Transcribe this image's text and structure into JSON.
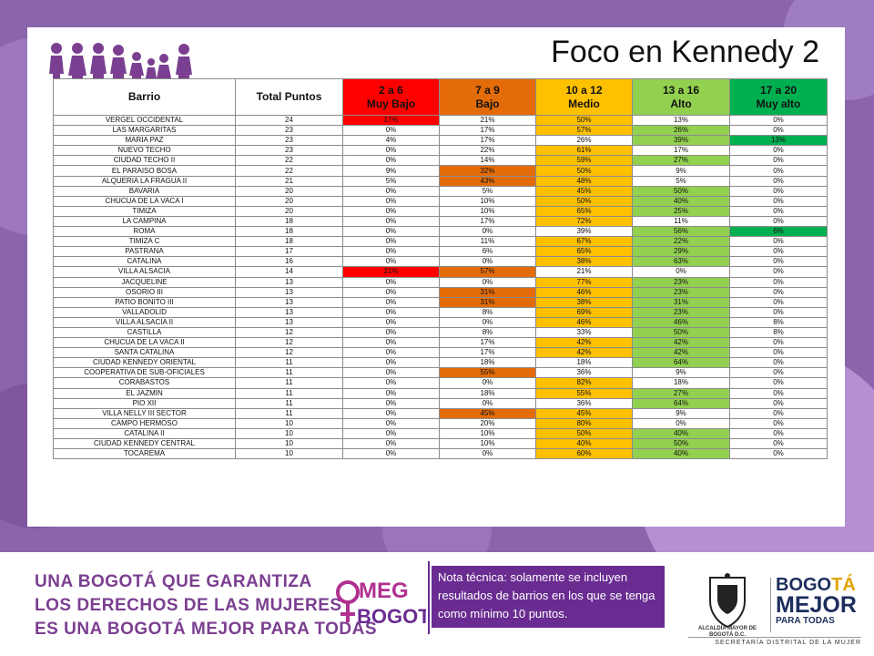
{
  "title": "Foco en Kennedy 2",
  "table": {
    "header": {
      "barrio": "Barrio",
      "total": "Total Puntos",
      "levels": [
        {
          "range": "2 a 6",
          "label": "Muy Bajo",
          "color": "#ff0000"
        },
        {
          "range": "7 a 9",
          "label": "Bajo",
          "color": "#e36c09"
        },
        {
          "range": "10 a 12",
          "label": "Medio",
          "color": "#ffc000"
        },
        {
          "range": "13 a 16",
          "label": "Alto",
          "color": "#92d050"
        },
        {
          "range": "17 a 20",
          "label": "Muy alto",
          "color": "#00b050"
        }
      ]
    },
    "rows": [
      {
        "barrio": "VERGEL OCCIDENTAL",
        "total": "24",
        "cells": [
          "17%",
          "21%",
          "50%",
          "13%",
          "0%"
        ],
        "hl": [
          0,
          2
        ]
      },
      {
        "barrio": "LAS MARGARITAS",
        "total": "23",
        "cells": [
          "0%",
          "17%",
          "57%",
          "26%",
          "0%"
        ],
        "hl": [
          2,
          3
        ]
      },
      {
        "barrio": "MARIA PAZ",
        "total": "23",
        "cells": [
          "4%",
          "17%",
          "26%",
          "39%",
          "13%"
        ],
        "hl": [
          3,
          4
        ]
      },
      {
        "barrio": "NUEVO TECHO",
        "total": "23",
        "cells": [
          "0%",
          "22%",
          "61%",
          "17%",
          "0%"
        ],
        "hl": [
          2
        ]
      },
      {
        "barrio": "CIUDAD TECHO II",
        "total": "22",
        "cells": [
          "0%",
          "14%",
          "59%",
          "27%",
          "0%"
        ],
        "hl": [
          2,
          3
        ]
      },
      {
        "barrio": "EL PARAISO BOSA",
        "total": "22",
        "cells": [
          "9%",
          "32%",
          "50%",
          "9%",
          "0%"
        ],
        "hl": [
          1,
          2
        ]
      },
      {
        "barrio": "ALQUERIA LA FRAGUA II",
        "total": "21",
        "cells": [
          "5%",
          "43%",
          "48%",
          "5%",
          "0%"
        ],
        "hl": [
          1,
          2
        ]
      },
      {
        "barrio": "BAVARIA",
        "total": "20",
        "cells": [
          "0%",
          "5%",
          "45%",
          "50%",
          "0%"
        ],
        "hl": [
          2,
          3
        ]
      },
      {
        "barrio": "CHUCUA DE LA VACA I",
        "total": "20",
        "cells": [
          "0%",
          "10%",
          "50%",
          "40%",
          "0%"
        ],
        "hl": [
          2,
          3
        ]
      },
      {
        "barrio": "TIMIZA",
        "total": "20",
        "cells": [
          "0%",
          "10%",
          "65%",
          "25%",
          "0%"
        ],
        "hl": [
          2,
          3
        ]
      },
      {
        "barrio": "LA CAMPINA",
        "total": "18",
        "cells": [
          "0%",
          "17%",
          "72%",
          "11%",
          "0%"
        ],
        "hl": [
          2
        ]
      },
      {
        "barrio": "ROMA",
        "total": "18",
        "cells": [
          "0%",
          "0%",
          "39%",
          "56%",
          "6%"
        ],
        "hl": [
          3,
          4
        ]
      },
      {
        "barrio": "TIMIZA C",
        "total": "18",
        "cells": [
          "0%",
          "11%",
          "67%",
          "22%",
          "0%"
        ],
        "hl": [
          2,
          3
        ]
      },
      {
        "barrio": "PASTRANA",
        "total": "17",
        "cells": [
          "0%",
          "6%",
          "65%",
          "29%",
          "0%"
        ],
        "hl": [
          2,
          3
        ]
      },
      {
        "barrio": "CATALINA",
        "total": "16",
        "cells": [
          "0%",
          "0%",
          "38%",
          "63%",
          "0%"
        ],
        "hl": [
          2,
          3
        ]
      },
      {
        "barrio": "VILLA ALSACIA",
        "total": "14",
        "cells": [
          "21%",
          "57%",
          "21%",
          "0%",
          "0%"
        ],
        "hl": [
          0,
          1
        ]
      },
      {
        "barrio": "JACQUELINE",
        "total": "13",
        "cells": [
          "0%",
          "0%",
          "77%",
          "23%",
          "0%"
        ],
        "hl": [
          2,
          3
        ]
      },
      {
        "barrio": "OSORIO III",
        "total": "13",
        "cells": [
          "0%",
          "31%",
          "46%",
          "23%",
          "0%"
        ],
        "hl": [
          1,
          2,
          3
        ]
      },
      {
        "barrio": "PATIO BONITO III",
        "total": "13",
        "cells": [
          "0%",
          "31%",
          "38%",
          "31%",
          "0%"
        ],
        "hl": [
          1,
          2,
          3
        ]
      },
      {
        "barrio": "VALLADOLID",
        "total": "13",
        "cells": [
          "0%",
          "8%",
          "69%",
          "23%",
          "0%"
        ],
        "hl": [
          2,
          3
        ]
      },
      {
        "barrio": "VILLA ALSACIA II",
        "total": "13",
        "cells": [
          "0%",
          "0%",
          "46%",
          "46%",
          "8%"
        ],
        "hl": [
          2,
          3
        ]
      },
      {
        "barrio": "CASTILLA",
        "total": "12",
        "cells": [
          "0%",
          "8%",
          "33%",
          "50%",
          "8%"
        ],
        "hl": [
          3
        ]
      },
      {
        "barrio": "CHUCUA DE LA VACA II",
        "total": "12",
        "cells": [
          "0%",
          "17%",
          "42%",
          "42%",
          "0%"
        ],
        "hl": [
          2,
          3
        ]
      },
      {
        "barrio": "SANTA CATALINA",
        "total": "12",
        "cells": [
          "0%",
          "17%",
          "42%",
          "42%",
          "0%"
        ],
        "hl": [
          2,
          3
        ]
      },
      {
        "barrio": "CIUDAD KENNEDY ORIENTAL",
        "total": "11",
        "cells": [
          "0%",
          "18%",
          "18%",
          "64%",
          "0%"
        ],
        "hl": [
          3
        ]
      },
      {
        "barrio": "COOPERATIVA DE SUB-OFICIALES",
        "total": "11",
        "cells": [
          "0%",
          "55%",
          "36%",
          "9%",
          "0%"
        ],
        "hl": [
          1
        ]
      },
      {
        "barrio": "CORABASTOS",
        "total": "11",
        "cells": [
          "0%",
          "0%",
          "82%",
          "18%",
          "0%"
        ],
        "hl": [
          2
        ]
      },
      {
        "barrio": "EL JAZMIN",
        "total": "11",
        "cells": [
          "0%",
          "18%",
          "55%",
          "27%",
          "0%"
        ],
        "hl": [
          2,
          3
        ]
      },
      {
        "barrio": "PIO XII",
        "total": "11",
        "cells": [
          "0%",
          "0%",
          "36%",
          "64%",
          "0%"
        ],
        "hl": [
          3
        ]
      },
      {
        "barrio": "VILLA NELLY III SECTOR",
        "total": "11",
        "cells": [
          "0%",
          "45%",
          "45%",
          "9%",
          "0%"
        ],
        "hl": [
          1,
          2
        ]
      },
      {
        "barrio": "CAMPO HERMOSO",
        "total": "10",
        "cells": [
          "0%",
          "20%",
          "80%",
          "0%",
          "0%"
        ],
        "hl": [
          2
        ]
      },
      {
        "barrio": "CATALINA II",
        "total": "10",
        "cells": [
          "0%",
          "10%",
          "50%",
          "40%",
          "0%"
        ],
        "hl": [
          2,
          3
        ]
      },
      {
        "barrio": "CIUDAD KENNEDY CENTRAL",
        "total": "10",
        "cells": [
          "0%",
          "10%",
          "40%",
          "50%",
          "0%"
        ],
        "hl": [
          2,
          3
        ]
      },
      {
        "barrio": "TOCAREMA",
        "total": "10",
        "cells": [
          "0%",
          "0%",
          "60%",
          "40%",
          "0%"
        ],
        "hl": [
          2,
          3
        ]
      }
    ]
  },
  "footer": {
    "slogan_line1": "UNA BOGOTÁ QUE GARANTIZA",
    "slogan_line2": "LOS DERECHOS DE LAS MUJERES",
    "slogan_line3": "ES UNA BOGOTÁ MEJOR PARA TODAS",
    "omeg_logo": "OMEG +BOGOTÁ",
    "note": "Nota técnica: solamente se incluyen resultados de barrios en los que se tenga como mínimo 10 puntos.",
    "alcaldia": "ALCALDÍA MAYOR DE BOGOTÁ D.C.",
    "bogota_logo": "BOGOTÁ MEJOR PARA TODAS",
    "secretaria": "SECRETARÍA DISTRITAL DE LA MUJER"
  }
}
